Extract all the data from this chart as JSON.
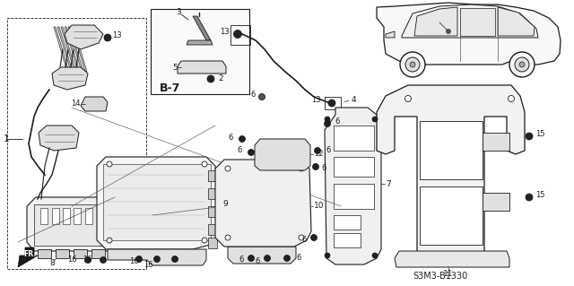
{
  "bg_color": "#ffffff",
  "diagram_code": "S3M3-B1330",
  "line_color": "#1a1a1a",
  "label_fontsize": 6.5,
  "title_fontsize": 7.5
}
